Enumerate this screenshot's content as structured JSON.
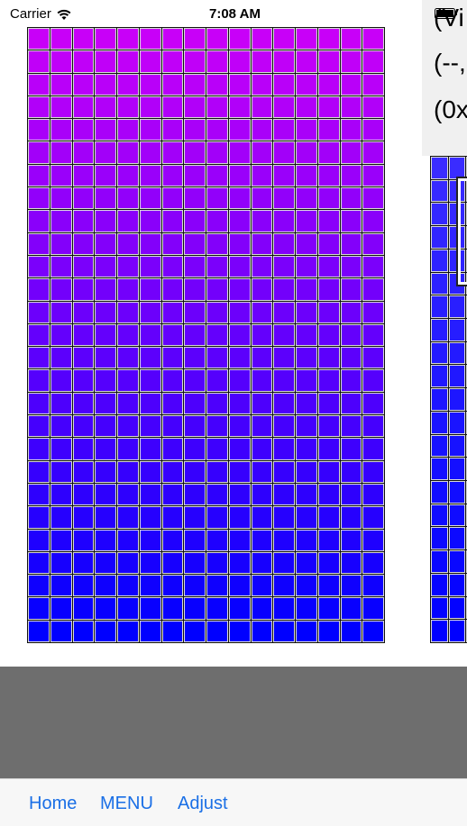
{
  "status_bar": {
    "carrier": "Carrier",
    "time": "7:08 AM",
    "wifi_icon": "wifi-icon",
    "battery_icon": "battery-icon"
  },
  "info_panel": {
    "lines": [
      "(Vi",
      "(--,",
      "(0x"
    ]
  },
  "toolbar": {
    "buttons": [
      "Home",
      "MENU",
      "Adjust"
    ]
  },
  "colors": {
    "grid_top": "#c800f8",
    "grid_bottom": "#0000ff",
    "right_grid_top": "#3a2cff",
    "right_grid_bottom": "#0000ff",
    "toolbar_link": "#1a6fe6",
    "gray_bar": "#6e6e6e"
  }
}
